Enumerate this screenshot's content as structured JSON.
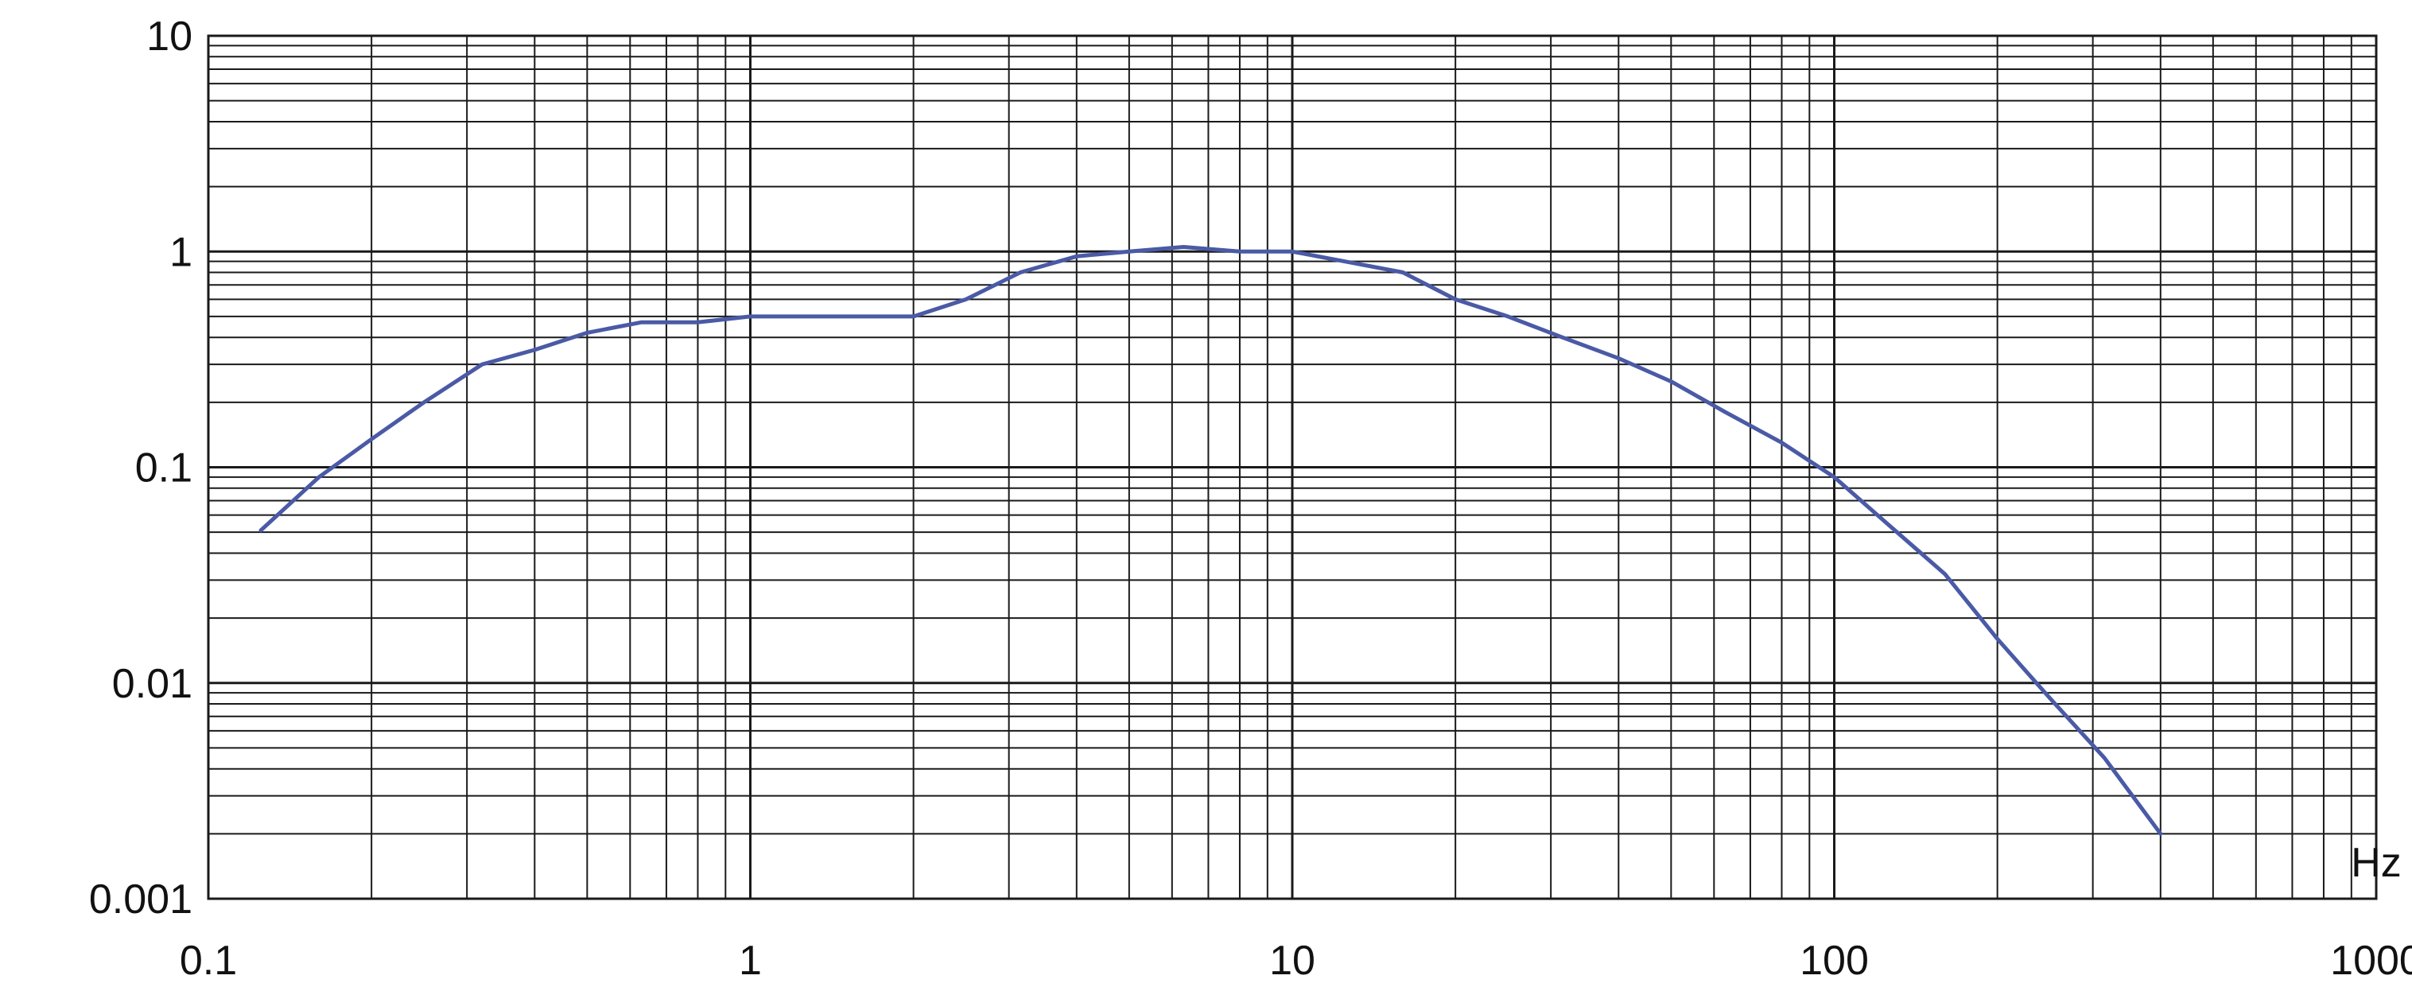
{
  "chart_data": {
    "type": "line",
    "title": "",
    "xlabel": "Hz",
    "ylabel": "",
    "x_scale": "log",
    "y_scale": "log",
    "xlim": [
      0.1,
      1000
    ],
    "ylim": [
      0.001,
      10
    ],
    "grid": true,
    "x_tick_labels": [
      "0.1",
      "1",
      "10",
      "100",
      "1000"
    ],
    "y_tick_labels": [
      "10",
      "1",
      "0.1",
      "0.01",
      "0.001"
    ],
    "colors": {
      "grid": "#1a1a1a",
      "series": "#4a5aa6"
    },
    "series": [
      {
        "x": [
          0.125,
          0.16,
          0.2,
          0.25,
          0.32,
          0.4,
          0.5,
          0.63,
          0.8,
          1.0,
          1.25,
          1.6,
          2.0,
          2.5,
          3.15,
          4.0,
          5.0,
          6.3,
          8.0,
          10.0,
          12.5,
          16.0,
          20.0,
          25.0,
          31.5,
          40.0,
          50.0,
          63.0,
          80.0,
          100.0,
          125.0,
          160.0,
          200.0,
          250.0,
          315.0,
          400.0
        ],
        "y": [
          0.051,
          0.09,
          0.135,
          0.2,
          0.3,
          0.35,
          0.42,
          0.47,
          0.47,
          0.5,
          0.5,
          0.5,
          0.5,
          0.6,
          0.8,
          0.95,
          1.0,
          1.05,
          1.0,
          1.0,
          0.9,
          0.8,
          0.6,
          0.5,
          0.4,
          0.32,
          0.25,
          0.18,
          0.13,
          0.09,
          0.055,
          0.032,
          0.016,
          0.0085,
          0.0045,
          0.002
        ]
      }
    ]
  }
}
